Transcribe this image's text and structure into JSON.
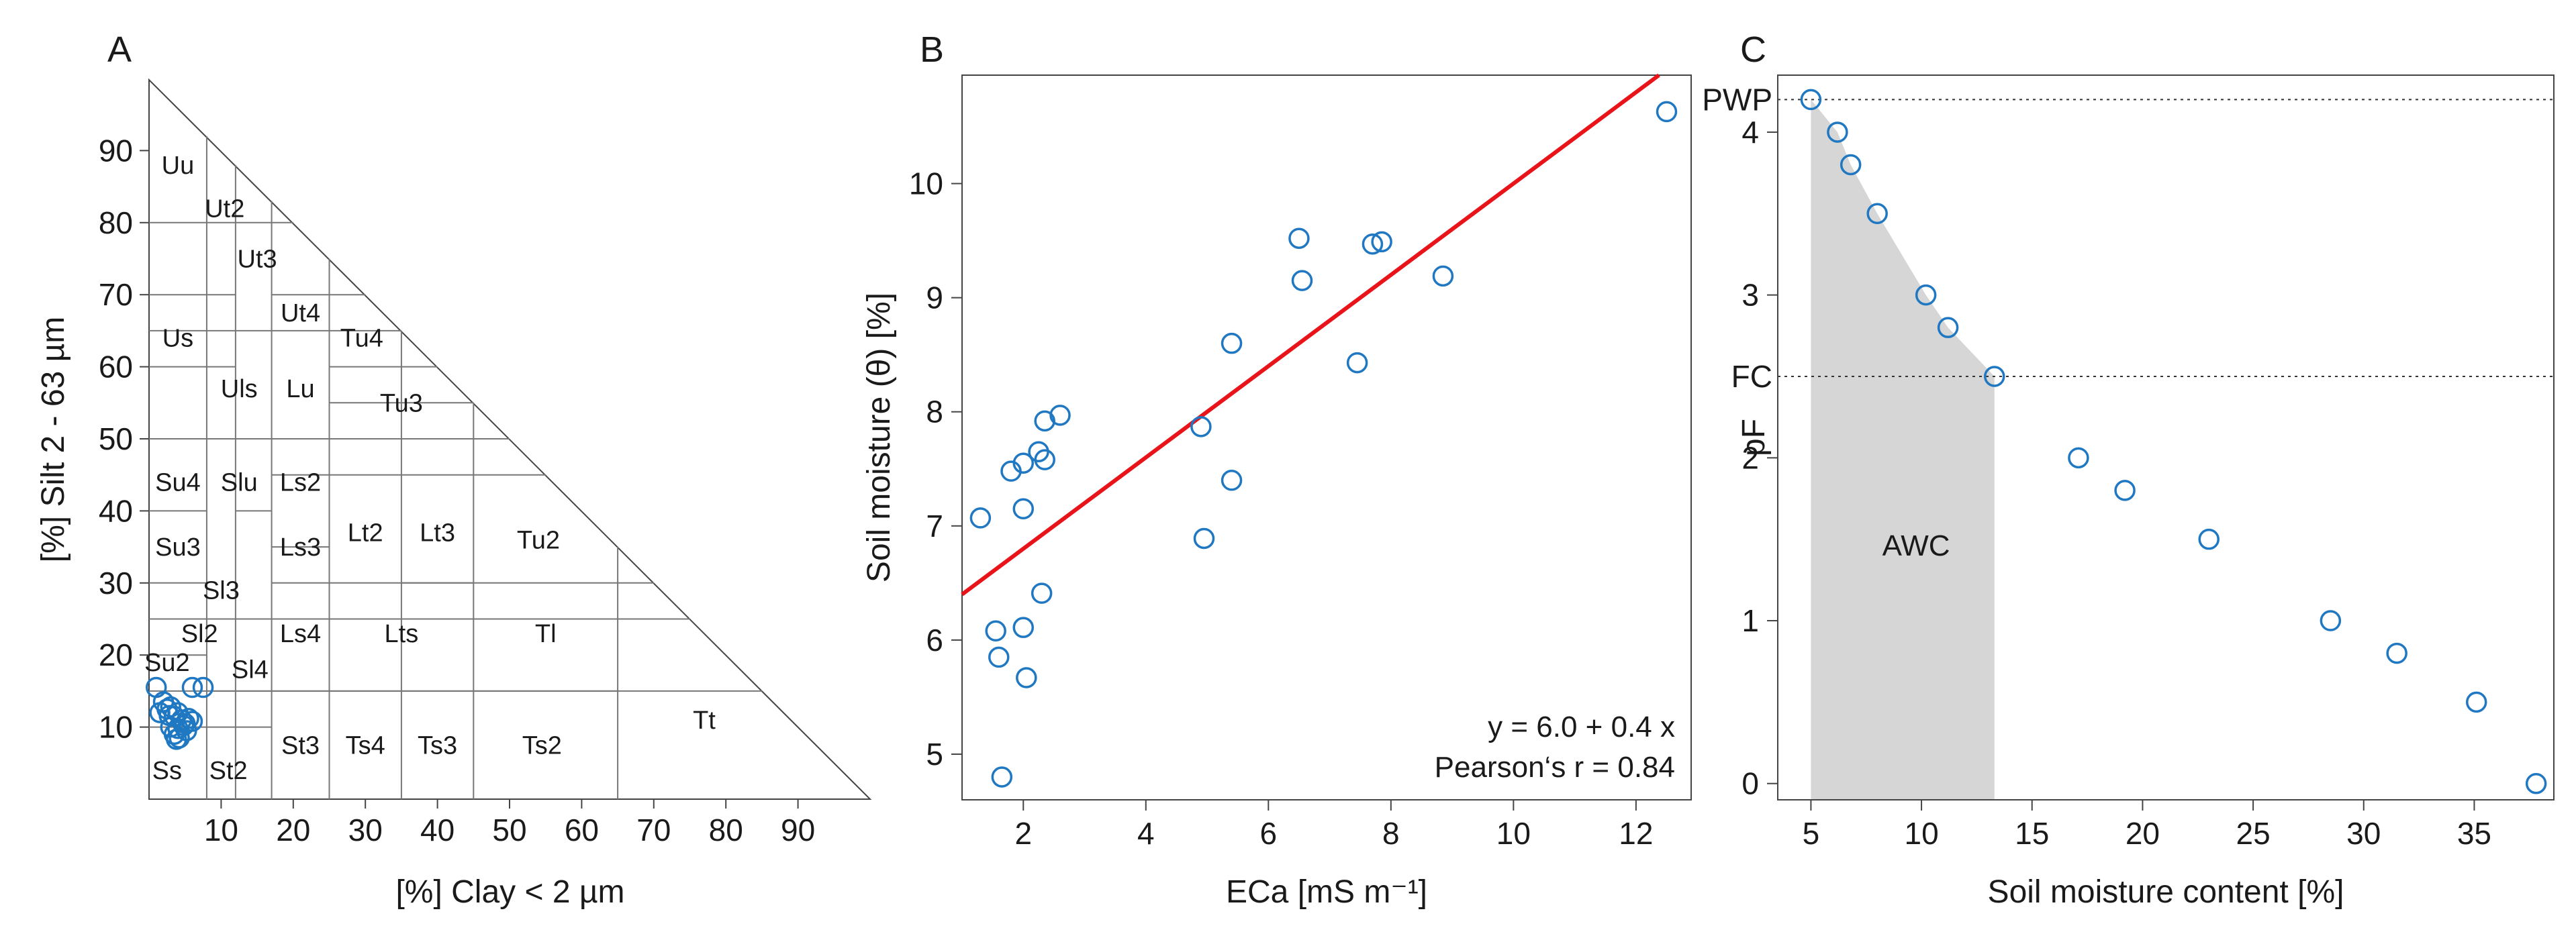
{
  "colors": {
    "points": "#1f78c1",
    "regression": "#e8141a",
    "awc_fill": "#d6d6d6",
    "frame": "#444444"
  },
  "chart_data": [
    {
      "panel": "A",
      "type": "scatter",
      "subtype": "soil-texture-triangle",
      "xlabel": "[%] Clay < 2 µm",
      "ylabel": "[%] Silt 2 - 63 µm",
      "xlim": [
        0,
        100
      ],
      "ylim": [
        0,
        100
      ],
      "xticks": [
        10,
        20,
        30,
        40,
        50,
        60,
        70,
        80,
        90
      ],
      "yticks": [
        10,
        20,
        30,
        40,
        50,
        60,
        70,
        80,
        90
      ],
      "texture_classes": [
        {
          "label": "Uu",
          "clay": 4,
          "silt": 88
        },
        {
          "label": "Ut2",
          "clay": 10.5,
          "silt": 82
        },
        {
          "label": "Ut3",
          "clay": 15,
          "silt": 75
        },
        {
          "label": "Ut4",
          "clay": 21,
          "silt": 67.5
        },
        {
          "label": "Tu4",
          "clay": 29.5,
          "silt": 64
        },
        {
          "label": "Us",
          "clay": 4,
          "silt": 64
        },
        {
          "label": "Uls",
          "clay": 12.5,
          "silt": 57
        },
        {
          "label": "Lu",
          "clay": 21,
          "silt": 57
        },
        {
          "label": "Tu3",
          "clay": 35,
          "silt": 55
        },
        {
          "label": "Su4",
          "clay": 4,
          "silt": 44
        },
        {
          "label": "Slu",
          "clay": 12.5,
          "silt": 44
        },
        {
          "label": "Ls2",
          "clay": 21,
          "silt": 44
        },
        {
          "label": "Lt2",
          "clay": 30,
          "silt": 37
        },
        {
          "label": "Lt3",
          "clay": 40,
          "silt": 37
        },
        {
          "label": "Tu2",
          "clay": 54,
          "silt": 36
        },
        {
          "label": "Su3",
          "clay": 4,
          "silt": 35
        },
        {
          "label": "Ls3",
          "clay": 21,
          "silt": 35
        },
        {
          "label": "Sl3",
          "clay": 10,
          "silt": 29
        },
        {
          "label": "Sl2",
          "clay": 7,
          "silt": 23
        },
        {
          "label": "Ls4",
          "clay": 21,
          "silt": 23
        },
        {
          "label": "Lts",
          "clay": 35,
          "silt": 23
        },
        {
          "label": "Tl",
          "clay": 55,
          "silt": 23
        },
        {
          "label": "Su2",
          "clay": 2.5,
          "silt": 19
        },
        {
          "label": "Sl4",
          "clay": 14,
          "silt": 18
        },
        {
          "label": "Tt",
          "clay": 77,
          "silt": 11
        },
        {
          "label": "St3",
          "clay": 21,
          "silt": 7.5
        },
        {
          "label": "Ts4",
          "clay": 30,
          "silt": 7.5
        },
        {
          "label": "Ts3",
          "clay": 40,
          "silt": 7.5
        },
        {
          "label": "Ts2",
          "clay": 54.5,
          "silt": 7.5
        },
        {
          "label": "Ss",
          "clay": 2.5,
          "silt": 4
        },
        {
          "label": "St2",
          "clay": 11,
          "silt": 4
        }
      ],
      "points": [
        {
          "clay": 1,
          "silt": 15.5
        },
        {
          "clay": 2,
          "silt": 13.5
        },
        {
          "clay": 2.5,
          "silt": 12.5
        },
        {
          "clay": 1.5,
          "silt": 12
        },
        {
          "clay": 3,
          "silt": 12.8
        },
        {
          "clay": 3.5,
          "silt": 11.5
        },
        {
          "clay": 4,
          "silt": 12
        },
        {
          "clay": 4.5,
          "silt": 11
        },
        {
          "clay": 5,
          "silt": 10.5
        },
        {
          "clay": 5.5,
          "silt": 11.2
        },
        {
          "clay": 6,
          "silt": 10.8
        },
        {
          "clay": 3,
          "silt": 10
        },
        {
          "clay": 4,
          "silt": 9.8
        },
        {
          "clay": 3.5,
          "silt": 9
        },
        {
          "clay": 4.2,
          "silt": 8.5
        },
        {
          "clay": 3.8,
          "silt": 8.3
        },
        {
          "clay": 5.2,
          "silt": 9.5
        },
        {
          "clay": 4.8,
          "silt": 10.2
        },
        {
          "clay": 2.8,
          "silt": 11.6
        },
        {
          "clay": 6,
          "silt": 15.5
        },
        {
          "clay": 7.5,
          "silt": 15.5
        }
      ]
    },
    {
      "panel": "B",
      "type": "scatter",
      "xlabel": "ECa [mS m⁻¹]",
      "ylabel": "Soil moisture (θ) [%]",
      "xlim": [
        1,
        12.9
      ],
      "ylim": [
        4.6,
        10.95
      ],
      "xticks": [
        2,
        4,
        6,
        8,
        10,
        12
      ],
      "yticks": [
        5,
        6,
        7,
        8,
        9,
        10
      ],
      "x": [
        1.3,
        1.55,
        1.6,
        1.65,
        1.8,
        2.0,
        2.0,
        2.0,
        2.05,
        2.25,
        2.3,
        2.35,
        2.35,
        2.6,
        4.9,
        4.95,
        5.4,
        5.4,
        6.5,
        6.55,
        7.45,
        7.7,
        7.85,
        8.85,
        12.5
      ],
      "y": [
        7.07,
        6.08,
        5.85,
        4.8,
        7.48,
        7.55,
        7.15,
        6.11,
        5.67,
        7.65,
        6.41,
        7.92,
        7.58,
        7.97,
        7.87,
        6.89,
        8.6,
        7.4,
        9.52,
        9.15,
        8.43,
        9.47,
        9.49,
        9.19,
        10.63
      ],
      "regression": {
        "intercept": 6.0,
        "slope": 0.4
      },
      "annotations": [
        "y = 6.0 + 0.4 x",
        "Pearson‘s r = 0.84"
      ]
    },
    {
      "panel": "C",
      "type": "scatter",
      "xlabel": "Soil moisture content [%]",
      "ylabel": "pF",
      "xlim": [
        3.5,
        38.6
      ],
      "ylim": [
        -0.1,
        4.35
      ],
      "xticks": [
        5,
        10,
        15,
        20,
        25,
        30,
        35
      ],
      "yticks": [
        0,
        1,
        2,
        3,
        4
      ],
      "x": [
        5.0,
        6.2,
        6.8,
        8.0,
        10.2,
        11.2,
        13.3,
        17.1,
        19.2,
        23.0,
        28.5,
        31.5,
        35.1,
        37.8
      ],
      "y": [
        4.2,
        4.0,
        3.8,
        3.5,
        3.0,
        2.8,
        2.5,
        2.0,
        1.8,
        1.5,
        1.0,
        0.8,
        0.5,
        0.0
      ],
      "reference_lines": [
        {
          "label": "PWP",
          "pF": 4.2
        },
        {
          "label": "FC",
          "pF": 2.5
        }
      ],
      "region_label": "AWC"
    }
  ]
}
